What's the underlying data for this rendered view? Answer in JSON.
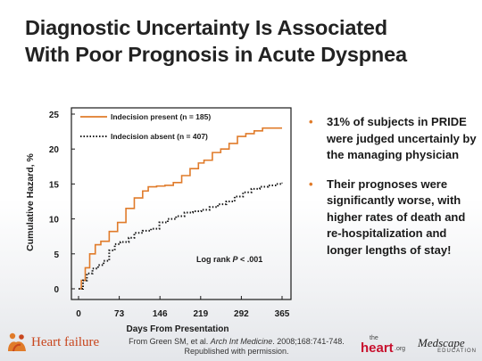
{
  "title": {
    "line1": "Diagnostic Uncertainty Is Associated",
    "line2": "With Poor Prognosis in Acute Dyspnea"
  },
  "chart_data": {
    "type": "line",
    "xlabel": "Days From Presentation",
    "ylabel": "Cumulative  Hazard, %",
    "xlim": [
      0,
      365
    ],
    "ylim": [
      0,
      25
    ],
    "x_ticks": [
      0,
      73,
      146,
      219,
      292,
      365
    ],
    "y_ticks": [
      0,
      5,
      10,
      15,
      20,
      25
    ],
    "grid": false,
    "legend_position": "top-left",
    "annotation": "Log rank P < .001",
    "series": [
      {
        "name": "Indecision present (n = 185)",
        "style": "solid",
        "color": "#e07b2a",
        "points": [
          [
            0,
            0
          ],
          [
            5,
            1.2
          ],
          [
            12,
            3
          ],
          [
            20,
            5
          ],
          [
            30,
            6.3
          ],
          [
            40,
            6.8
          ],
          [
            55,
            8.2
          ],
          [
            70,
            9.5
          ],
          [
            85,
            11.5
          ],
          [
            100,
            13
          ],
          [
            115,
            14
          ],
          [
            125,
            14.6
          ],
          [
            140,
            14.7
          ],
          [
            155,
            14.8
          ],
          [
            170,
            15.2
          ],
          [
            185,
            16.2
          ],
          [
            200,
            17.2
          ],
          [
            215,
            18
          ],
          [
            225,
            18.4
          ],
          [
            240,
            19.5
          ],
          [
            255,
            20
          ],
          [
            270,
            20.8
          ],
          [
            285,
            21.8
          ],
          [
            300,
            22.2
          ],
          [
            315,
            22.6
          ],
          [
            330,
            23
          ],
          [
            350,
            23
          ],
          [
            365,
            23
          ]
        ]
      },
      {
        "name": "Indecision absent (n = 407)",
        "style": "dotted",
        "color": "#1a1a1a",
        "points": [
          [
            0,
            0
          ],
          [
            8,
            1.2
          ],
          [
            15,
            2.2
          ],
          [
            25,
            2.9
          ],
          [
            35,
            3.4
          ],
          [
            45,
            4
          ],
          [
            55,
            5.5
          ],
          [
            65,
            6.4
          ],
          [
            75,
            6.7
          ],
          [
            90,
            7.3
          ],
          [
            100,
            8
          ],
          [
            115,
            8.3
          ],
          [
            130,
            8.6
          ],
          [
            145,
            9.5
          ],
          [
            160,
            10
          ],
          [
            175,
            10.4
          ],
          [
            190,
            10.9
          ],
          [
            205,
            11.1
          ],
          [
            220,
            11.3
          ],
          [
            235,
            11.7
          ],
          [
            250,
            12.1
          ],
          [
            265,
            12.5
          ],
          [
            280,
            13.2
          ],
          [
            295,
            13.8
          ],
          [
            310,
            14.3
          ],
          [
            325,
            14.6
          ],
          [
            340,
            14.8
          ],
          [
            355,
            15
          ],
          [
            365,
            15.2
          ]
        ]
      }
    ]
  },
  "bullets": [
    "31% of subjects in PRIDE were judged uncertainly by the managing physician",
    "Their prognoses were significantly worse, with higher rates of death and re-hospitalization and longer lengths of stay!"
  ],
  "citation": {
    "prefix": "From Green SM, et al. ",
    "journal": "Arch Int Medicine",
    "suffix": ". 2008;168:741-748.",
    "line2": "Republished with permission."
  },
  "logos": {
    "heart_failure": "Heart failure",
    "theheart_the": "the",
    "theheart_heart": "heart",
    "theheart_org": ".org",
    "medscape": "Medscape",
    "medscape_sub": "EDUCATION",
    "heart_failure_icon": "family-hug-icon"
  }
}
